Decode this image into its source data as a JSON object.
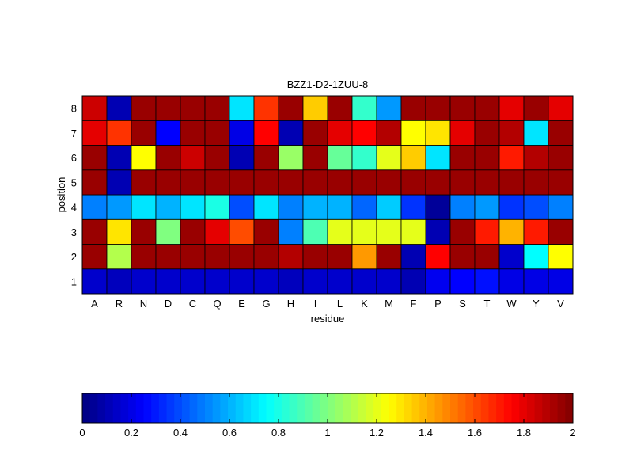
{
  "chart_data": {
    "type": "heatmap",
    "title": "BZZ1-D2-1ZUU-8",
    "xlabel": "residue",
    "ylabel": "position",
    "x_categories": [
      "A",
      "R",
      "N",
      "D",
      "C",
      "Q",
      "E",
      "G",
      "H",
      "I",
      "L",
      "K",
      "M",
      "F",
      "P",
      "S",
      "T",
      "W",
      "Y",
      "V"
    ],
    "y_categories": [
      "1",
      "2",
      "3",
      "4",
      "5",
      "6",
      "7",
      "8"
    ],
    "values": [
      [
        0.15,
        0.12,
        0.15,
        0.15,
        0.15,
        0.15,
        0.15,
        0.15,
        0.12,
        0.15,
        0.15,
        0.15,
        0.15,
        0.1,
        0.22,
        0.25,
        0.28,
        0.2,
        0.2,
        0.2
      ],
      [
        1.95,
        1.1,
        1.95,
        1.95,
        1.95,
        1.95,
        1.95,
        1.95,
        1.9,
        1.95,
        1.95,
        1.45,
        1.95,
        0.1,
        1.75,
        1.95,
        1.95,
        0.15,
        0.75,
        1.25
      ],
      [
        1.95,
        1.3,
        1.95,
        1.0,
        1.95,
        1.8,
        1.6,
        1.95,
        0.5,
        0.9,
        1.2,
        1.2,
        1.2,
        1.2,
        0.1,
        1.95,
        1.7,
        1.4,
        1.7,
        1.95
      ],
      [
        0.5,
        0.55,
        0.7,
        0.6,
        0.7,
        0.8,
        0.4,
        0.7,
        0.5,
        0.6,
        0.6,
        0.45,
        0.65,
        0.35,
        0.05,
        0.5,
        0.55,
        0.35,
        0.4,
        0.5
      ],
      [
        1.95,
        0.1,
        1.95,
        1.95,
        1.95,
        1.95,
        1.95,
        1.95,
        1.95,
        1.95,
        1.95,
        1.95,
        1.95,
        1.95,
        1.95,
        1.95,
        1.95,
        1.95,
        1.95,
        1.95
      ],
      [
        1.95,
        0.1,
        1.25,
        1.95,
        1.85,
        1.95,
        0.1,
        1.95,
        1.05,
        1.95,
        0.95,
        0.85,
        1.2,
        1.35,
        0.7,
        1.95,
        1.95,
        1.7,
        1.9,
        1.95
      ],
      [
        1.8,
        1.65,
        1.95,
        0.25,
        1.95,
        1.95,
        0.2,
        1.75,
        0.1,
        1.95,
        1.8,
        1.75,
        1.9,
        1.25,
        1.3,
        1.8,
        1.95,
        1.9,
        0.7,
        1.95
      ],
      [
        1.85,
        0.1,
        1.95,
        1.95,
        1.95,
        1.95,
        0.7,
        1.65,
        1.95,
        1.35,
        1.95,
        0.85,
        0.55,
        1.95,
        1.95,
        1.95,
        1.95,
        1.8,
        1.95,
        1.8
      ]
    ],
    "clim": [
      0,
      2
    ],
    "colormap": "jet",
    "colorbar": {
      "orientation": "horizontal",
      "placement": "bottom",
      "ticks": [
        0,
        0.2,
        0.4,
        0.6,
        0.8,
        1,
        1.2,
        1.4,
        1.6,
        1.8,
        2
      ],
      "tick_labels": [
        "0",
        "0.2",
        "0.4",
        "0.6",
        "0.8",
        "1",
        "1.2",
        "1.4",
        "1.6",
        "1.8",
        "2"
      ]
    },
    "grid": false
  }
}
